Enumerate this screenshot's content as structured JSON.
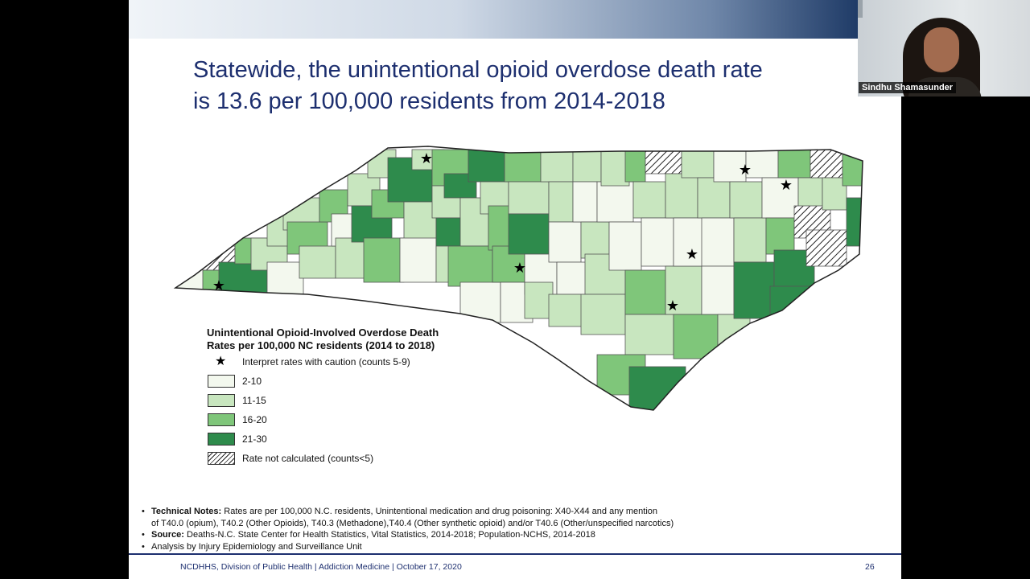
{
  "slide": {
    "title_line1": "Statewide, the unintentional opioid overdose death rate",
    "title_line2": "is 13.6 per 100,000 residents from 2014-2018"
  },
  "legend": {
    "title_line1": "Unintentional Opioid-Involved Overdose Death",
    "title_line2": "Rates per 100,000 NC residents (2014 to 2018)",
    "caution_label": "Interpret rates with caution (counts 5-9)",
    "items": [
      {
        "label": "2-10",
        "color": "#f3f8ee"
      },
      {
        "label": "11-15",
        "color": "#c8e6bf"
      },
      {
        "label": "16-20",
        "color": "#7fc67a"
      },
      {
        "label": "21-30",
        "color": "#2e8b4c"
      },
      {
        "label": "Rate not calculated (counts<5)",
        "color": "hatched"
      }
    ]
  },
  "notes": {
    "technical_label": "Technical Notes:",
    "technical_text": " Rates are per 100,000 N.C. residents, Unintentional medication and drug poisoning: X40-X44 and any mention",
    "technical_text2": "of T40.0 (opium), T40.2 (Other Opioids), T40.3 (Methadone),T40.4 (Other synthetic opioid) and/or T40.6 (Other/unspecified narcotics)",
    "source_label": "Source:",
    "source_text": " Deaths-N.C. State Center for Health Statistics, Vital Statistics, 2014-2018; Population-NCHS, 2014-2018",
    "analysis_text": "Analysis by Injury Epidemiology and Surveillance Unit"
  },
  "footer": {
    "text": "NCDHHS, Division of Public Health | Addiction Medicine | October 17, 2020",
    "page_number": "26"
  },
  "video": {
    "participant_name": "Sindhu Shamasunder"
  },
  "colors": {
    "title": "#1d2f6f",
    "c1": "#f3f8ee",
    "c2": "#c8e6bf",
    "c3": "#7fc67a",
    "c4": "#2e8b4c"
  }
}
